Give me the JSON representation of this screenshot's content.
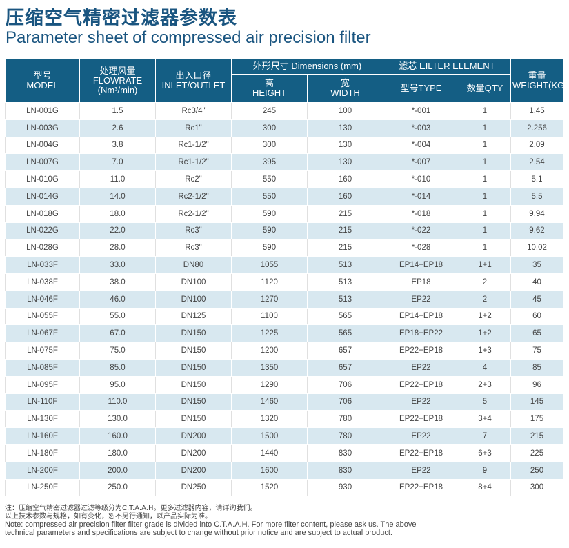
{
  "title_cn": "压缩空气精密过滤器参数表",
  "title_en": "Parameter sheet of compressed air precision filter",
  "headers": {
    "model": [
      "型号",
      "MODEL"
    ],
    "flowrate": [
      "处理风量",
      "FLOWRATE",
      "(Nm³/min)"
    ],
    "inlet": [
      "出入口径",
      "INLET/OUTLET"
    ],
    "dimensions": "外形尺寸 Dimensions (mm)",
    "height": [
      "高",
      "HEIGHT"
    ],
    "width": [
      "宽",
      "WIDTH"
    ],
    "filter_element": "滤芯 EILTER ELEMENT",
    "type": "型号TYPE",
    "qty": "数量QTY",
    "weight": [
      "重量",
      "WEIGHT(KG)"
    ]
  },
  "rows": [
    [
      "LN-001G",
      "1.5",
      "Rc3/4\"",
      "245",
      "100",
      "*-001",
      "1",
      "1.45"
    ],
    [
      "LN-003G",
      "2.6",
      "Rc1\"",
      "300",
      "130",
      "*-003",
      "1",
      "2.256"
    ],
    [
      "LN-004G",
      "3.8",
      "Rc1-1/2\"",
      "300",
      "130",
      "*-004",
      "1",
      "2.09"
    ],
    [
      "LN-007G",
      "7.0",
      "Rc1-1/2\"",
      "395",
      "130",
      "*-007",
      "1",
      "2.54"
    ],
    [
      "LN-010G",
      "11.0",
      "Rc2\"",
      "550",
      "160",
      "*-010",
      "1",
      "5.1"
    ],
    [
      "LN-014G",
      "14.0",
      "Rc2-1/2\"",
      "550",
      "160",
      "*-014",
      "1",
      "5.5"
    ],
    [
      "LN-018G",
      "18.0",
      "Rc2-1/2\"",
      "590",
      "215",
      "*-018",
      "1",
      "9.94"
    ],
    [
      "LN-022G",
      "22.0",
      "Rc3\"",
      "590",
      "215",
      "*-022",
      "1",
      "9.62"
    ],
    [
      "LN-028G",
      "28.0",
      "Rc3\"",
      "590",
      "215",
      "*-028",
      "1",
      "10.02"
    ],
    [
      "LN-033F",
      "33.0",
      "DN80",
      "1055",
      "513",
      "EP14+EP18",
      "1+1",
      "35"
    ],
    [
      "LN-038F",
      "38.0",
      "DN100",
      "1120",
      "513",
      "EP18",
      "2",
      "40"
    ],
    [
      "LN-046F",
      "46.0",
      "DN100",
      "1270",
      "513",
      "EP22",
      "2",
      "45"
    ],
    [
      "LN-055F",
      "55.0",
      "DN125",
      "1100",
      "565",
      "EP14+EP18",
      "1+2",
      "60"
    ],
    [
      "LN-067F",
      "67.0",
      "DN150",
      "1225",
      "565",
      "EP18+EP22",
      "1+2",
      "65"
    ],
    [
      "LN-075F",
      "75.0",
      "DN150",
      "1200",
      "657",
      "EP22+EP18",
      "1+3",
      "75"
    ],
    [
      "LN-085F",
      "85.0",
      "DN150",
      "1350",
      "657",
      "EP22",
      "4",
      "85"
    ],
    [
      "LN-095F",
      "95.0",
      "DN150",
      "1290",
      "706",
      "EP22+EP18",
      "2+3",
      "96"
    ],
    [
      "LN-110F",
      "110.0",
      "DN150",
      "1460",
      "706",
      "EP22",
      "5",
      "145"
    ],
    [
      "LN-130F",
      "130.0",
      "DN150",
      "1320",
      "780",
      "EP22+EP18",
      "3+4",
      "175"
    ],
    [
      "LN-160F",
      "160.0",
      "DN200",
      "1500",
      "780",
      "EP22",
      "7",
      "215"
    ],
    [
      "LN-180F",
      "180.0",
      "DN200",
      "1440",
      "830",
      "EP22+EP18",
      "6+3",
      "225"
    ],
    [
      "LN-200F",
      "200.0",
      "DN200",
      "1600",
      "830",
      "EP22",
      "9",
      "250"
    ],
    [
      "LN-250F",
      "250.0",
      "DN250",
      "1520",
      "930",
      "EP22+EP18",
      "8+4",
      "300"
    ]
  ],
  "notes": {
    "cn_line1": "注：压缩空气精密过滤器过滤等级分为C.T.A.A.H。更多过滤器内容，请详询我们。",
    "cn_line2": "以上技术参数与规格，如有变化，恕不另行通知，以产品实际为准。",
    "en_line1": "Note:  compressed air precision filter filter grade is divided into C.T.A.A.H. For more filter content, please ask us. The above",
    "en_line2": "technical parameters and specifications are subject to change without prior notice and are subject to actual product."
  },
  "colors": {
    "header_bg": "#145e84",
    "title": "#1a5580",
    "row_alt": "#d8e8f0"
  }
}
